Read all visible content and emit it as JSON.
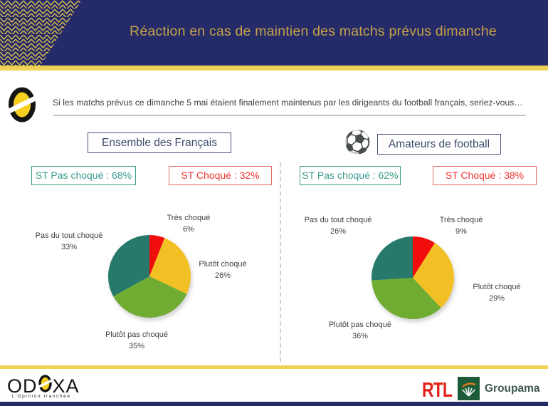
{
  "header": {
    "title": "Réaction en cas de maintien des matchs prévus dimanche"
  },
  "question": {
    "text": "Si les matchs prévus ce dimanche 5 mai étaient finalement maintenus par les dirigeants du football français, seriez-vous…"
  },
  "icons": {
    "soccer_ball": "⚽"
  },
  "panels": [
    {
      "title": "Ensemble des Français",
      "badges": {
        "pas_choque": "ST Pas choqué : 68%",
        "choque": "ST Choqué : 32%"
      }
    },
    {
      "title": "Amateurs de football",
      "badges": {
        "pas_choque": "ST Pas choqué : 62%",
        "choque": "ST Choqué : 38%"
      }
    }
  ],
  "chart_data": [
    {
      "type": "pie",
      "group": "Ensemble des Français",
      "start_angle_deg": 0,
      "direction": "clockwise",
      "slices": [
        {
          "label": "Très choqué",
          "pct": "6%",
          "value": 6,
          "color": "#F20D0D"
        },
        {
          "label": "Plutôt choqué",
          "pct": "26%",
          "value": 26,
          "color": "#F2C025"
        },
        {
          "label": "Plutôt pas choqué",
          "pct": "35%",
          "value": 35,
          "color": "#6FAC31"
        },
        {
          "label": "Pas du tout choqué",
          "pct": "33%",
          "value": 33,
          "color": "#27796B"
        }
      ]
    },
    {
      "type": "pie",
      "group": "Amateurs de football",
      "start_angle_deg": 0,
      "direction": "clockwise",
      "slices": [
        {
          "label": "Très choqué",
          "pct": "9%",
          "value": 9,
          "color": "#F20D0D"
        },
        {
          "label": "Plutôt choqué",
          "pct": "29%",
          "value": 29,
          "color": "#F2C025"
        },
        {
          "label": "Plutôt pas choqué",
          "pct": "36%",
          "value": 36,
          "color": "#6FAC31"
        },
        {
          "label": "Pas du tout choqué",
          "pct": "26%",
          "value": 26,
          "color": "#27796B"
        }
      ]
    }
  ],
  "colors": {
    "navy": "#242B68",
    "gold_accent": "#EED253",
    "title_gold": "#C8A24A",
    "teal_status": "#3D9C8D",
    "red_status": "#ED3833"
  },
  "footer": {
    "odoxa_left": "OD",
    "odoxa_right": "XA",
    "odoxa_tagline": "L'Opinion tranchée",
    "rtl": "RTL",
    "groupama": "Groupama"
  }
}
